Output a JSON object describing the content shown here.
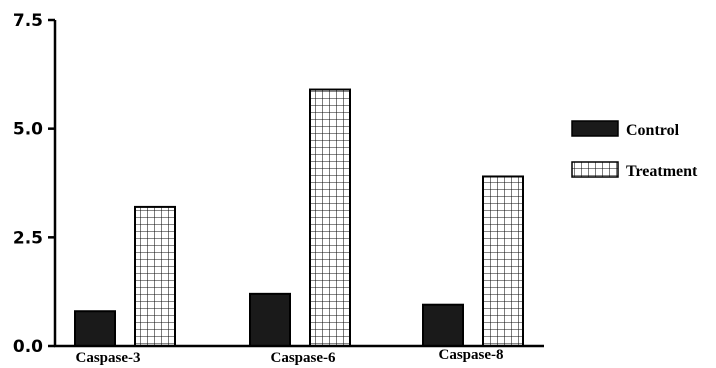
{
  "chart_data": {
    "type": "bar",
    "title": "",
    "xlabel": "",
    "ylabel": "",
    "categories": [
      "Caspase-3",
      "Caspase-6",
      "Caspase-8"
    ],
    "series": [
      {
        "name": "Control",
        "values": [
          0.8,
          1.2,
          0.95
        ],
        "color": "#1a1a1a",
        "fill": "solid"
      },
      {
        "name": "Treatment",
        "values": [
          3.2,
          5.9,
          3.9
        ],
        "color": "#ffffff",
        "fill": "grid"
      }
    ],
    "ylim": [
      0,
      7.5
    ],
    "yticks": [
      "0.0",
      "2.5",
      "5.0",
      "7.5"
    ],
    "grid": false,
    "legend_position": "right"
  }
}
